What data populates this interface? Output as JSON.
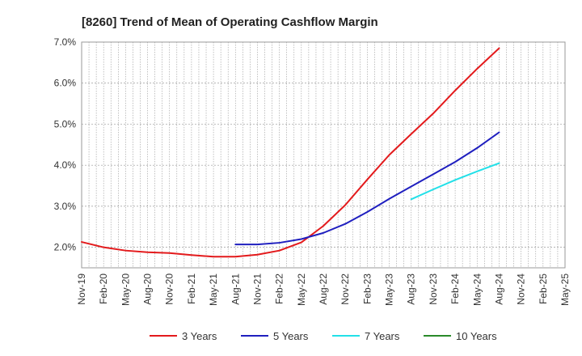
{
  "chart_data": {
    "type": "line",
    "title": "[8260]  Trend of Mean of Operating Cashflow Margin",
    "xlabel": "",
    "ylabel": "",
    "ylim": [
      1.5,
      7.0
    ],
    "yticks": [
      2.0,
      3.0,
      4.0,
      5.0,
      6.0,
      7.0
    ],
    "ytick_labels": [
      "2.0%",
      "3.0%",
      "4.0%",
      "5.0%",
      "6.0%",
      "7.0%"
    ],
    "x_start": "Nov-19",
    "x_end": "May-25",
    "x_tick_labels": [
      "Nov-19",
      "Feb-20",
      "May-20",
      "Aug-20",
      "Nov-20",
      "Feb-21",
      "May-21",
      "Aug-21",
      "Nov-21",
      "Feb-22",
      "May-22",
      "Aug-22",
      "Nov-22",
      "Feb-23",
      "May-23",
      "Aug-23",
      "Nov-23",
      "Feb-24",
      "May-24",
      "Aug-24",
      "Nov-24",
      "Feb-25",
      "May-25"
    ],
    "grid": true,
    "legend_position": "bottom",
    "series": [
      {
        "name": "3 Years",
        "color": "#e31a1c",
        "points": [
          [
            "Nov-19",
            2.13
          ],
          [
            "Feb-20",
            2.0
          ],
          [
            "May-20",
            1.92
          ],
          [
            "Aug-20",
            1.88
          ],
          [
            "Nov-20",
            1.86
          ],
          [
            "Feb-21",
            1.81
          ],
          [
            "May-21",
            1.77
          ],
          [
            "Aug-21",
            1.77
          ],
          [
            "Nov-21",
            1.82
          ],
          [
            "Feb-22",
            1.92
          ],
          [
            "May-22",
            2.12
          ],
          [
            "Aug-22",
            2.52
          ],
          [
            "Nov-22",
            3.03
          ],
          [
            "Feb-23",
            3.65
          ],
          [
            "May-23",
            4.25
          ],
          [
            "Aug-23",
            4.76
          ],
          [
            "Nov-23",
            5.26
          ],
          [
            "Feb-24",
            5.82
          ],
          [
            "May-24",
            6.35
          ],
          [
            "Aug-24",
            6.85
          ]
        ]
      },
      {
        "name": "5 Years",
        "color": "#1f1fbf",
        "points": [
          [
            "Aug-21",
            2.07
          ],
          [
            "Nov-21",
            2.07
          ],
          [
            "Feb-22",
            2.11
          ],
          [
            "May-22",
            2.2
          ],
          [
            "Aug-22",
            2.35
          ],
          [
            "Nov-22",
            2.57
          ],
          [
            "Feb-23",
            2.86
          ],
          [
            "May-23",
            3.18
          ],
          [
            "Aug-23",
            3.48
          ],
          [
            "Nov-23",
            3.78
          ],
          [
            "Feb-24",
            4.08
          ],
          [
            "May-24",
            4.42
          ],
          [
            "Aug-24",
            4.8
          ]
        ]
      },
      {
        "name": "7 Years",
        "color": "#22e0e8",
        "points": [
          [
            "Aug-23",
            3.17
          ],
          [
            "Nov-23",
            3.41
          ],
          [
            "Feb-24",
            3.64
          ],
          [
            "May-24",
            3.85
          ],
          [
            "Aug-24",
            4.05
          ]
        ]
      },
      {
        "name": "10 Years",
        "color": "#2a8a2a",
        "points": []
      }
    ]
  }
}
